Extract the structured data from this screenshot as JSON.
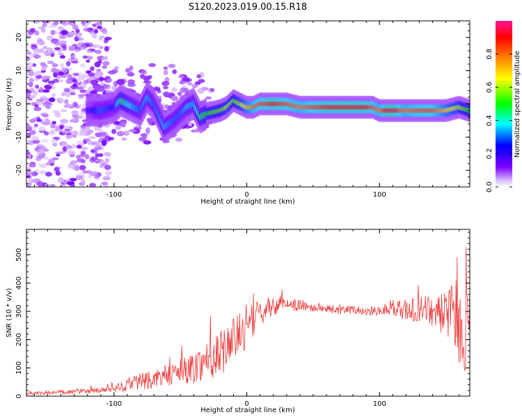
{
  "figure": {
    "title": "S120.2023.019.00.15.R18"
  },
  "chart_data": [
    {
      "type": "heatmap",
      "title": "S120.2023.019.00.15.R18",
      "xlabel": "Height of straight line (km)",
      "ylabel": "Frequency (Hz)",
      "xlim": [
        -166,
        168
      ],
      "ylim": [
        -25,
        25
      ],
      "xticks": [
        -100,
        0,
        100
      ],
      "xtick_labels": [
        "-100",
        "0",
        "100"
      ],
      "yticks": [
        -20,
        -10,
        0,
        10,
        20
      ],
      "ytick_labels": [
        "-20",
        "-10",
        "0",
        "10",
        "20"
      ],
      "colorbar": {
        "label": "Normalized spectral amplitude",
        "range": [
          0.0,
          1.0
        ],
        "ticks": [
          0.0,
          0.2,
          0.4,
          0.6,
          0.8
        ],
        "tick_labels": [
          "0.0",
          "0.2",
          "0.4",
          "0.6",
          "0.8"
        ],
        "colormap": "gist_rainbow_r",
        "stops": [
          "#ffffff",
          "#7b00ff",
          "#0000ff",
          "#00ffff",
          "#00ff00",
          "#ffff00",
          "#ff8000",
          "#ff0000",
          "#ff0080"
        ]
      },
      "ridge": {
        "x": [
          -120,
          -110,
          -100,
          -95,
          -90,
          -80,
          -75,
          -70,
          -62,
          -55,
          -50,
          -45,
          -40,
          -35,
          -30,
          -20,
          -15,
          -10,
          -5,
          0,
          5,
          10,
          20,
          30,
          40,
          50,
          60,
          70,
          80,
          90,
          95,
          100,
          105,
          110,
          115,
          120,
          130,
          140,
          150,
          160,
          168
        ],
        "y": [
          -2,
          -2,
          -1,
          1,
          0,
          -2,
          2,
          0,
          -7,
          -5,
          -3,
          -1,
          0,
          -4,
          -3,
          -2,
          -1,
          1,
          0,
          -1,
          -1,
          0,
          0,
          0,
          -1,
          -1,
          -1,
          -1,
          -1,
          -1,
          -1,
          -2,
          -2,
          -2,
          -2,
          -2,
          -2,
          -2,
          -2,
          -1,
          -2
        ],
        "amplitude": [
          0.2,
          0.3,
          0.25,
          0.45,
          0.4,
          0.3,
          0.35,
          0.3,
          0.35,
          0.3,
          0.3,
          0.35,
          0.35,
          0.45,
          0.5,
          0.55,
          0.6,
          0.55,
          0.6,
          0.7,
          0.8,
          0.85,
          0.9,
          0.85,
          0.8,
          0.85,
          0.9,
          0.9,
          0.9,
          0.9,
          0.85,
          0.8,
          0.9,
          0.95,
          0.85,
          0.8,
          0.85,
          0.85,
          0.7,
          0.6,
          0.5
        ]
      }
    },
    {
      "type": "line",
      "xlabel": "Height of straight line (km)",
      "ylabel": "SNR (10 * v/v)",
      "xlim": [
        -166,
        168
      ],
      "ylim": [
        0,
        590
      ],
      "xticks": [
        -100,
        0,
        100
      ],
      "xtick_labels": [
        "-100",
        "0",
        "100"
      ],
      "yticks": [
        0,
        100,
        200,
        300,
        400,
        500
      ],
      "ytick_labels": [
        "0",
        "100",
        "200",
        "300",
        "400",
        "500"
      ],
      "color": "#ee3333",
      "series": [
        {
          "x": [
            -166,
            -150,
            -130,
            -110,
            -100,
            -90,
            -80,
            -70,
            -60,
            -50,
            -40,
            -30,
            -20,
            -15,
            -10,
            -5,
            0,
            5,
            10,
            15,
            20,
            25,
            30,
            40,
            50,
            60,
            70,
            80,
            90,
            100,
            110,
            120,
            130,
            140,
            150,
            155,
            160,
            165,
            168
          ],
          "values": [
            10,
            12,
            15,
            20,
            25,
            40,
            55,
            60,
            70,
            85,
            100,
            130,
            150,
            180,
            200,
            220,
            240,
            270,
            290,
            310,
            320,
            325,
            330,
            320,
            315,
            310,
            305,
            305,
            300,
            305,
            310,
            305,
            300,
            305,
            290,
            300,
            260,
            240,
            230
          ],
          "spread": [
            6,
            6,
            8,
            10,
            12,
            25,
            35,
            30,
            35,
            45,
            55,
            70,
            80,
            85,
            85,
            75,
            70,
            60,
            50,
            40,
            35,
            30,
            25,
            20,
            18,
            16,
            15,
            15,
            15,
            18,
            25,
            40,
            50,
            60,
            80,
            110,
            150,
            160,
            150
          ]
        }
      ]
    }
  ]
}
